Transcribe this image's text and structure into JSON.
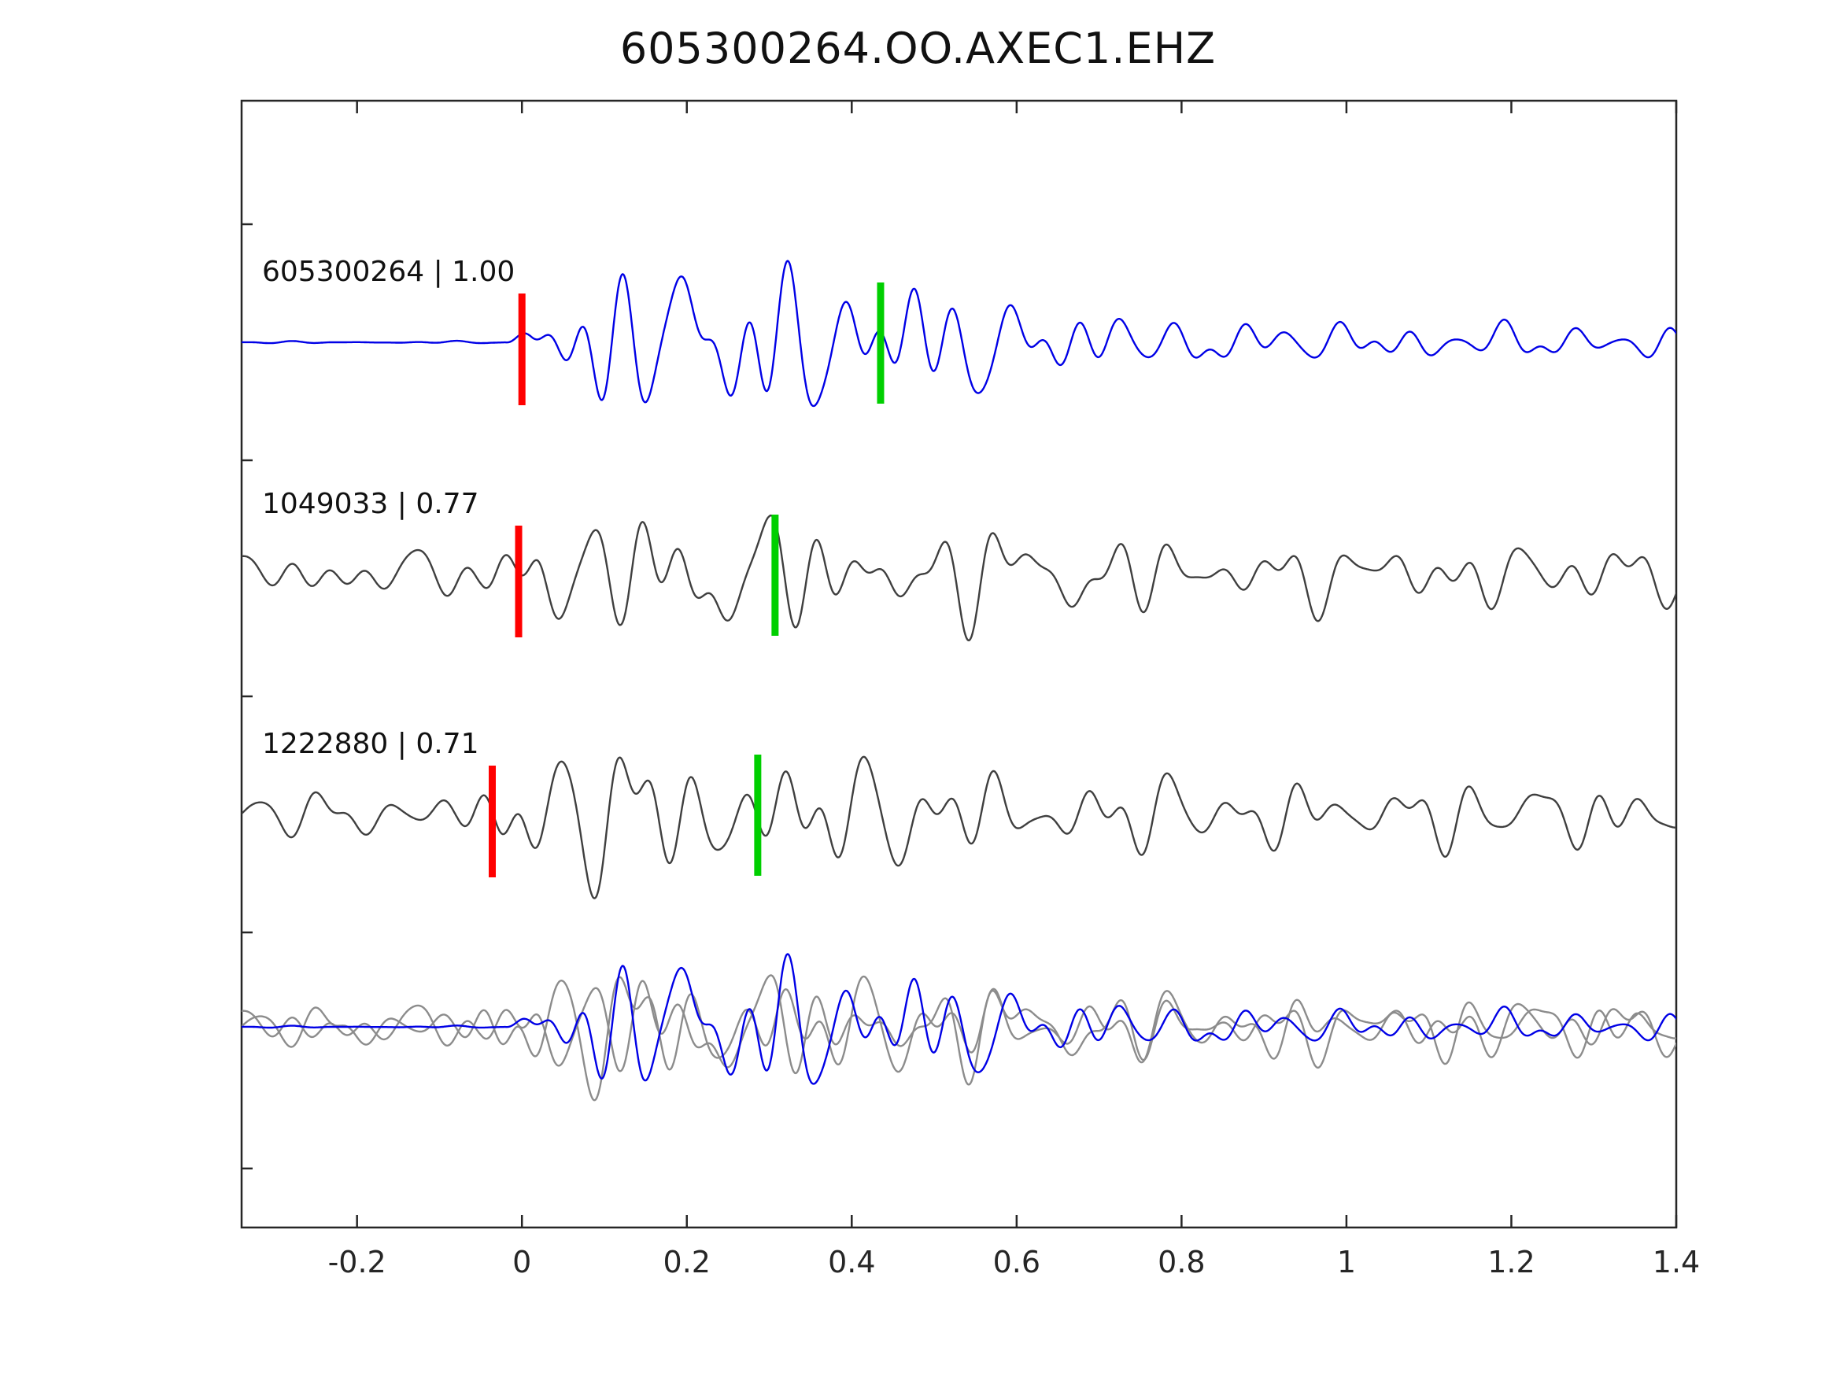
{
  "title": "605300264.OO.AXEC1.EHZ",
  "chart_data": {
    "type": "line",
    "title": "605300264.OO.AXEC1.EHZ",
    "xlabel": "",
    "ylabel": "",
    "xlim": [
      -0.34,
      1.4
    ],
    "grid": false,
    "legend": "inline-labels",
    "x_ticks": [
      {
        "value": -0.2,
        "label": "-0.2"
      },
      {
        "value": 0,
        "label": "0"
      },
      {
        "value": 0.2,
        "label": "0.2"
      },
      {
        "value": 0.4,
        "label": "0.4"
      },
      {
        "value": 0.6,
        "label": "0.6"
      },
      {
        "value": 0.8,
        "label": "0.8"
      },
      {
        "value": 1,
        "label": "1"
      },
      {
        "value": 1.2,
        "label": "1.2"
      },
      {
        "value": 1.4,
        "label": "1.4"
      }
    ],
    "colors": {
      "primary": "#0000e6",
      "template": "#3f3f3f",
      "overlay_gray": "#8c8c8c",
      "pick_red": "#ff0000",
      "pick_green": "#00cf00",
      "axis": "#262626",
      "tick_text": "#262626"
    },
    "traces": [
      {
        "id": "605300264",
        "similarity": "1.00",
        "label": "605300264 | 1.00",
        "color_key": "primary",
        "row": 0,
        "scale": 95,
        "picks": {
          "red_x": 0.0,
          "green_x": 0.435
        },
        "synth": {
          "freqs": [
            10.2,
            14.9,
            19.8,
            25.1,
            7.1,
            3.9
          ],
          "amps": [
            0.85,
            1.0,
            0.9,
            0.55,
            0.5,
            0.3
          ],
          "phases": [
            0.8,
            2.4,
            4.9,
            1.7,
            5.9,
            3.3
          ],
          "envelope": [
            [
              -0.34,
              0.012
            ],
            [
              -0.02,
              0.012
            ],
            [
              0.01,
              0.55
            ],
            [
              0.08,
              0.75
            ],
            [
              0.17,
              1.0
            ],
            [
              0.28,
              0.9
            ],
            [
              0.42,
              0.95
            ],
            [
              0.5,
              0.7
            ],
            [
              0.6,
              0.5
            ],
            [
              0.72,
              0.35
            ],
            [
              0.85,
              0.25
            ],
            [
              1.05,
              0.22
            ],
            [
              1.4,
              0.2
            ]
          ]
        }
      },
      {
        "id": "1049033",
        "similarity": "0.77",
        "label": "1049033 | 0.77",
        "color_key": "template",
        "row": 1,
        "scale": 80,
        "picks": {
          "red_x": -0.004,
          "green_x": 0.307
        },
        "synth": {
          "freqs": [
            9.6,
            14.2,
            18.7,
            23.8,
            6.7,
            4.3
          ],
          "amps": [
            0.9,
            1.0,
            0.8,
            0.6,
            0.55,
            0.35
          ],
          "phases": [
            2.9,
            0.6,
            3.8,
            5.2,
            1.4,
            4.7
          ],
          "envelope": [
            [
              -0.34,
              0.3
            ],
            [
              -0.05,
              0.32
            ],
            [
              0.02,
              0.9
            ],
            [
              0.12,
              0.8
            ],
            [
              0.2,
              1.0
            ],
            [
              0.3,
              0.75
            ],
            [
              0.42,
              0.85
            ],
            [
              0.55,
              0.7
            ],
            [
              0.7,
              0.55
            ],
            [
              0.9,
              0.45
            ],
            [
              1.1,
              0.45
            ],
            [
              1.4,
              0.42
            ]
          ]
        }
      },
      {
        "id": "1222880",
        "similarity": "0.71",
        "label": "1222880 | 0.71",
        "color_key": "template",
        "row": 2,
        "scale": 80,
        "picks": {
          "red_x": -0.036,
          "green_x": 0.286
        },
        "synth": {
          "freqs": [
            10.8,
            13.6,
            19.2,
            24.4,
            7.6,
            4.6
          ],
          "amps": [
            0.95,
            1.0,
            0.85,
            0.5,
            0.5,
            0.3
          ],
          "phases": [
            5.1,
            3.4,
            1.2,
            2.6,
            0.3,
            4.0
          ],
          "envelope": [
            [
              -0.34,
              0.28
            ],
            [
              -0.08,
              0.3
            ],
            [
              0.0,
              0.85
            ],
            [
              0.1,
              1.0
            ],
            [
              0.2,
              0.95
            ],
            [
              0.3,
              0.9
            ],
            [
              0.45,
              0.7
            ],
            [
              0.6,
              0.6
            ],
            [
              0.8,
              0.5
            ],
            [
              1.0,
              0.48
            ],
            [
              1.4,
              0.45
            ]
          ]
        }
      }
    ],
    "overlay": {
      "row": 3,
      "components": [
        {
          "use_trace": 1,
          "color_key": "overlay_gray",
          "scale": 70
        },
        {
          "use_trace": 2,
          "color_key": "overlay_gray",
          "scale": 70
        },
        {
          "use_trace": 0,
          "color_key": "primary",
          "scale": 85
        }
      ]
    }
  }
}
